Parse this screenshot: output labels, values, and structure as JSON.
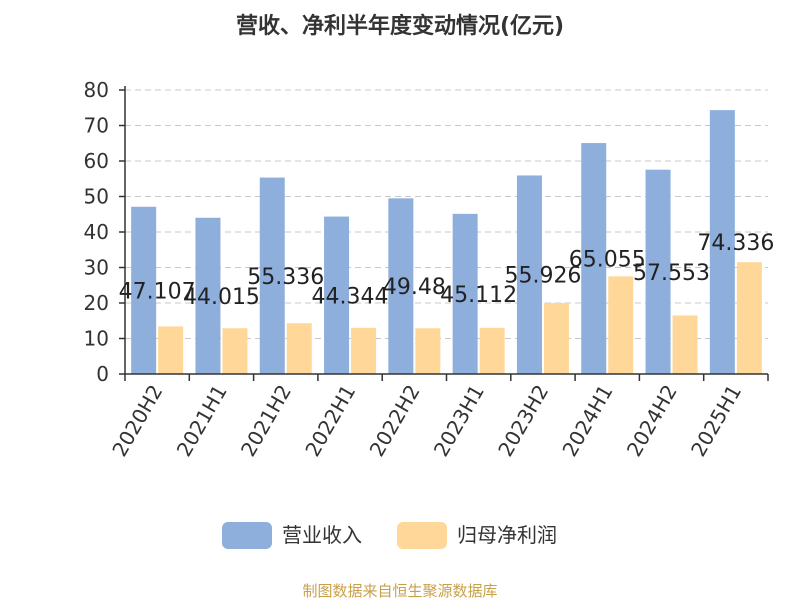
{
  "chart_data": {
    "type": "bar",
    "title": "营收、净利半年度变动情况(亿元)",
    "categories": [
      "2020H2",
      "2021H1",
      "2021H2",
      "2022H1",
      "2022H2",
      "2023H1",
      "2023H2",
      "2024H1",
      "2024H2",
      "2025H1"
    ],
    "series": [
      {
        "name": "营业收入",
        "color": "#8eafdc",
        "values": [
          47.107,
          44.015,
          55.336,
          44.344,
          49.48,
          45.112,
          55.926,
          65.055,
          57.553,
          74.336
        ],
        "labels": [
          "47.107",
          "44.015",
          "55.336",
          "44.344",
          "49.48",
          "45.112",
          "55.926",
          "65.055",
          "57.553",
          "74.336"
        ]
      },
      {
        "name": "归母净利润",
        "color": "#ffd899",
        "values": [
          13.4,
          12.9,
          14.3,
          13.0,
          12.9,
          13.0,
          20.0,
          27.5,
          16.5,
          31.5
        ]
      }
    ],
    "ylim": [
      0,
      80
    ],
    "yticks": [
      0,
      10,
      20,
      30,
      40,
      50,
      60,
      70,
      80
    ],
    "grid": true,
    "legend_position": "bottom"
  },
  "footer": "制图数据来自恒生聚源数据库"
}
